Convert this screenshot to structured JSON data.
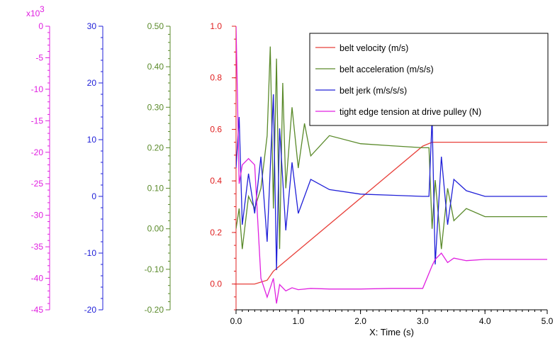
{
  "chart_data": {
    "type": "line",
    "xlabel": "X: Time (s)",
    "xlim": [
      0.0,
      5.0
    ],
    "x_ticks": [
      "0.0",
      "1.0",
      "2.0",
      "3.0",
      "4.0",
      "5.0"
    ],
    "grid": false,
    "legend_position": "top-right",
    "axes": [
      {
        "id": "tension",
        "color": "#e020e0",
        "range": [
          -45000,
          0
        ],
        "multiplier_label": "x10",
        "multiplier_exp": "3",
        "ticks": [
          "0",
          "-5",
          "-10",
          "-15",
          "-20",
          "-25",
          "-30",
          "-35",
          "-40",
          "-45"
        ]
      },
      {
        "id": "jerk",
        "color": "#2020d8",
        "range": [
          -20,
          30
        ],
        "ticks": [
          "30",
          "20",
          "10",
          "0",
          "-10",
          "-20"
        ]
      },
      {
        "id": "accel",
        "color": "#5a8a2a",
        "range": [
          -0.2,
          0.5
        ],
        "ticks": [
          "0.50",
          "0.40",
          "0.30",
          "0.20",
          "0.10",
          "0.00",
          "-0.10",
          "-0.20"
        ]
      },
      {
        "id": "velocity",
        "color": "#e02020",
        "range": [
          -0.1,
          1.0
        ],
        "ticks": [
          "1.0",
          "0.8",
          "0.6",
          "0.4",
          "0.2",
          "0.0"
        ]
      }
    ],
    "series": [
      {
        "name": "belt velocity (m/s)",
        "color": "#e8403a",
        "axis": "velocity",
        "x": [
          0,
          0.3,
          0.5,
          0.6,
          3.0,
          3.15,
          3.3,
          5.0
        ],
        "y": [
          0.0,
          0.0,
          0.015,
          0.05,
          0.535,
          0.55,
          0.55,
          0.55
        ]
      },
      {
        "name": "belt acceleration (m/s/s)",
        "color": "#5a8a2a",
        "axis": "accel",
        "x": [
          0,
          0.05,
          0.1,
          0.2,
          0.3,
          0.4,
          0.5,
          0.55,
          0.6,
          0.65,
          0.7,
          0.75,
          0.8,
          0.9,
          1.0,
          1.1,
          1.2,
          1.5,
          2.0,
          2.5,
          3.0,
          3.1,
          3.15,
          3.2,
          3.3,
          3.4,
          3.5,
          3.7,
          4.0,
          4.5,
          5.0
        ],
        "y": [
          0.0,
          0.05,
          -0.05,
          0.08,
          0.05,
          0.1,
          0.23,
          0.45,
          0.05,
          0.42,
          -0.05,
          0.36,
          0.1,
          0.3,
          0.15,
          0.26,
          0.18,
          0.23,
          0.21,
          0.205,
          0.2,
          0.2,
          0.0,
          0.12,
          -0.05,
          0.1,
          0.02,
          0.05,
          0.03,
          0.03,
          0.03
        ]
      },
      {
        "name": "belt jerk (m/s/s/s)",
        "color": "#2020d8",
        "axis": "jerk",
        "x": [
          0,
          0.05,
          0.1,
          0.2,
          0.3,
          0.4,
          0.5,
          0.6,
          0.65,
          0.7,
          0.8,
          0.9,
          1.0,
          1.2,
          1.5,
          2.0,
          2.5,
          3.0,
          3.1,
          3.15,
          3.2,
          3.3,
          3.4,
          3.5,
          3.7,
          4.0,
          4.5,
          5.0
        ],
        "y": [
          5,
          14,
          -5,
          4,
          -3,
          7,
          -8,
          18,
          -13,
          12,
          -6,
          6,
          -3,
          3,
          1.2,
          0.4,
          0.2,
          0,
          0,
          14,
          -12,
          7,
          -5,
          3,
          1,
          0,
          0,
          0
        ]
      },
      {
        "name": "tight edge tension at drive pulley (N)",
        "color": "#e020e0",
        "axis": "tension",
        "x": [
          0,
          0.02,
          0.05,
          0.1,
          0.2,
          0.3,
          0.4,
          0.5,
          0.6,
          0.65,
          0.7,
          0.8,
          0.9,
          1.0,
          1.2,
          1.5,
          2.0,
          2.5,
          3.0,
          3.15,
          3.2,
          3.3,
          3.4,
          3.5,
          3.7,
          4.0,
          4.5,
          5.0
        ],
        "y": [
          0,
          -10000,
          -25000,
          -22000,
          -21000,
          -22000,
          -40000,
          -43000,
          -40000,
          -44000,
          -41000,
          -42000,
          -41500,
          -41800,
          -41600,
          -41700,
          -41700,
          -41600,
          -41600,
          -38000,
          -37000,
          -36000,
          -37500,
          -36800,
          -37200,
          -37000,
          -37000,
          -37000
        ]
      }
    ]
  }
}
